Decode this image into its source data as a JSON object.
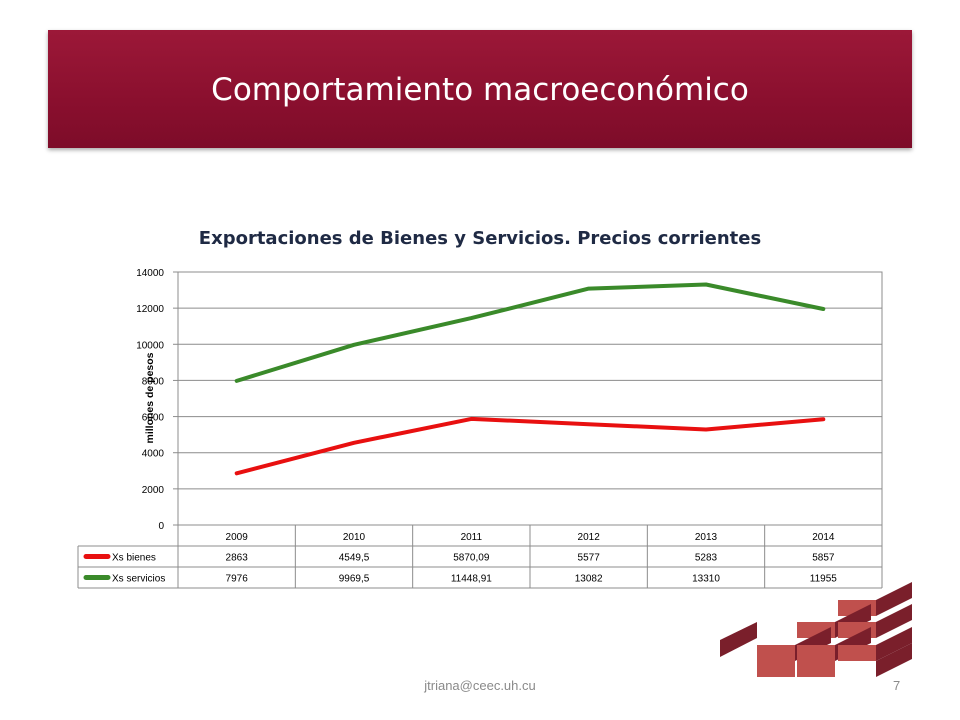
{
  "slide": {
    "title": "Comportamiento macroeconómico",
    "footer_email": "jtriana@ceec.uh.cu",
    "page_number": "7"
  },
  "colors": {
    "banner": "#8a0f2e",
    "bienes": "#e81010",
    "servicios": "#3a8a2a",
    "logo_dark": "#7a1f2b",
    "logo_light": "#c0504d"
  },
  "chart_data": {
    "type": "line",
    "title": "Exportaciones de Bienes y Servicios. Precios corrientes",
    "ylabel": "millones de pesos",
    "xlabel": "",
    "categories": [
      "2009",
      "2010",
      "2011",
      "2012",
      "2013",
      "2014"
    ],
    "y_ticks": [
      "0",
      "2000",
      "4000",
      "6000",
      "8000",
      "10000",
      "12000",
      "14000"
    ],
    "ylim": [
      0,
      14000
    ],
    "grid": true,
    "legend": "data-table-below",
    "series": [
      {
        "name": "Xs bienes",
        "values": [
          2863,
          4549.5,
          5870.09,
          5577,
          5283,
          5857
        ],
        "labels": [
          "2863",
          "4549,5",
          "5870,09",
          "5577",
          "5283",
          "5857"
        ]
      },
      {
        "name": "Xs servicios",
        "values": [
          7976,
          9969.5,
          11448.91,
          13082,
          13310,
          11955
        ],
        "labels": [
          "7976",
          "9969,5",
          "11448,91",
          "13082",
          "13310",
          "11955"
        ]
      }
    ]
  }
}
